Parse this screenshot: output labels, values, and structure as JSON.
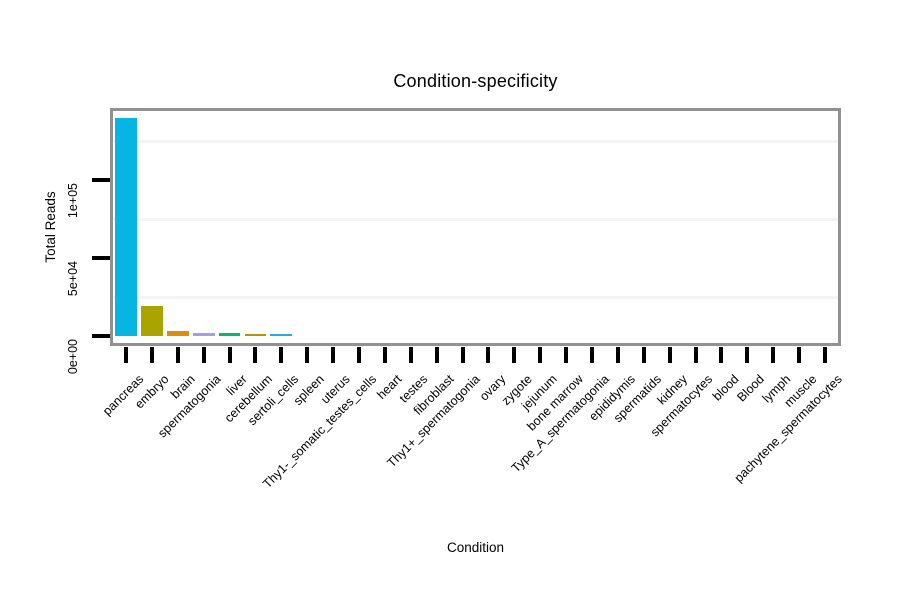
{
  "chart_data": {
    "type": "bar",
    "title": "Condition-specificity",
    "xlabel": "Condition",
    "ylabel": "Total Reads",
    "categories": [
      "pancreas",
      "embryo",
      "brain",
      "spermatogonia",
      "liver",
      "cerebellum",
      "sertoli_cells",
      "spleen",
      "uterus",
      "Thy1-_somatic_testes_cells",
      "heart",
      "testes",
      "fibroblast",
      "Thy1+_spermatogonia",
      "ovary",
      "zygote",
      "jejunum",
      "bone marrow",
      "Type_A_spermatogonia",
      "epididymis",
      "spermatids",
      "kidney",
      "spermatocytes",
      "blood",
      "Blood",
      "lymph",
      "muscle",
      "pachytene_spermatocytes"
    ],
    "values": [
      140000,
      19000,
      3200,
      1700,
      1700,
      1300,
      1000,
      0,
      0,
      0,
      0,
      0,
      0,
      0,
      0,
      0,
      0,
      0,
      0,
      0,
      0,
      0,
      0,
      0,
      0,
      0,
      0,
      0
    ],
    "bar_colors": [
      "#06b5e2",
      "#a9a400",
      "#df8e0a",
      "#a89ce9",
      "#04b875",
      "#b3920c",
      "#27a9e3",
      null,
      null,
      null,
      null,
      null,
      null,
      null,
      null,
      null,
      null,
      null,
      null,
      null,
      null,
      null,
      null,
      null,
      null,
      null,
      null,
      null
    ],
    "yticks": [
      {
        "value": 0,
        "label": "0e+00"
      },
      {
        "value": 50000,
        "label": "5e+04"
      },
      {
        "value": 100000,
        "label": "1e+05"
      }
    ],
    "minor_gridlines_at": [
      25000,
      75000,
      125000
    ],
    "ylim": [
      -4500,
      144000
    ],
    "grid": "horizontal-minor-only",
    "legend": "none"
  },
  "style": {
    "background": "#ffffff",
    "panel_border": "#919191",
    "grid_color": "#f4f4f4",
    "tick_color": "#000000",
    "text_color": "#000000",
    "bar_outline": "none"
  }
}
